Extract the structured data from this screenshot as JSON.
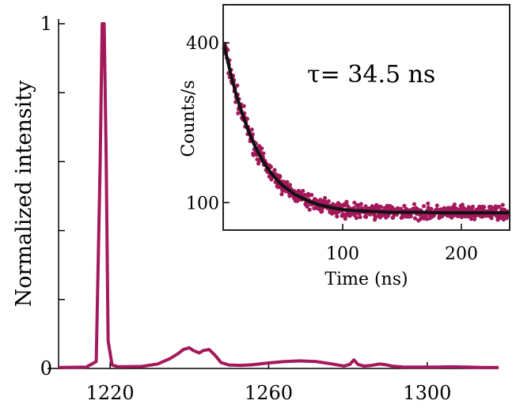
{
  "chart_data": [
    {
      "type": "line",
      "title": "",
      "xlabel": "",
      "ylabel": "Normalized intensity",
      "xlim": [
        1207,
        1318
      ],
      "ylim": [
        0,
        1.0
      ],
      "xticks": [
        1220,
        1260,
        1300
      ],
      "yticks": [
        0,
        1
      ],
      "grid": false,
      "color": "#a3195b",
      "series": [
        {
          "x": [
            1207,
            1214,
            1216.5,
            1217.5,
            1218.0,
            1218.5,
            1219.0,
            1219.5,
            1220.5,
            1222,
            1228,
            1232,
            1235,
            1237,
            1238.5,
            1240,
            1241,
            1242.5,
            1243.5,
            1245,
            1246.5,
            1248,
            1250,
            1253,
            1256,
            1260,
            1264,
            1268,
            1272,
            1276,
            1279,
            1280.5,
            1281.5,
            1282.5,
            1284,
            1286,
            1288,
            1289.5,
            1291,
            1294,
            1298,
            1302,
            1306,
            1310,
            1314,
            1318
          ],
          "y": [
            0.003,
            0.004,
            0.02,
            0.6,
            1.0,
            1.0,
            0.62,
            0.08,
            0.01,
            0.005,
            0.006,
            0.013,
            0.028,
            0.042,
            0.055,
            0.06,
            0.052,
            0.045,
            0.052,
            0.055,
            0.038,
            0.017,
            0.01,
            0.009,
            0.011,
            0.016,
            0.02,
            0.022,
            0.02,
            0.013,
            0.007,
            0.012,
            0.025,
            0.012,
            0.007,
            0.009,
            0.013,
            0.011,
            0.007,
            0.004,
            0.004,
            0.004,
            0.005,
            0.004,
            0.003,
            0.003
          ]
        }
      ],
      "annotations": [
        "1"
      ]
    },
    {
      "type": "scatter",
      "title": "",
      "xlabel": "Time (ns)",
      "ylabel": "Counts/s",
      "xlim": [
        0,
        240
      ],
      "ylim": [
        50,
        470
      ],
      "xticks": [
        100,
        200
      ],
      "yticks": [
        100,
        400
      ],
      "grid": false,
      "scatter_color": "#a3195b",
      "fit_color": "#111111",
      "series": [
        {
          "x": [
            0,
            5,
            10,
            15,
            20,
            25,
            30,
            35,
            40,
            45,
            50,
            60,
            70,
            80,
            90,
            100,
            110,
            120,
            130,
            140,
            150,
            160,
            170,
            180,
            190,
            200,
            210,
            220,
            230,
            240
          ],
          "y": [
            397,
            348,
            305,
            269,
            238,
            211,
            189,
            170,
            155,
            142,
            131,
            115,
            104,
            96,
            91,
            87,
            85,
            84,
            83,
            82,
            82,
            82,
            82,
            81,
            81,
            81,
            81,
            81,
            81,
            81
          ]
        },
        {
          "x": [
            0,
            5,
            10,
            15,
            20,
            25,
            30,
            35,
            40,
            45,
            50,
            60,
            70,
            80,
            90,
            100,
            110,
            120,
            130,
            140,
            150,
            160,
            170,
            180,
            190,
            200,
            210,
            220,
            230,
            240
          ],
          "y": [
            397,
            348,
            305,
            269,
            238,
            211,
            189,
            170,
            155,
            142,
            131,
            115,
            104,
            96,
            91,
            87,
            85,
            84,
            83,
            82,
            82,
            82,
            82,
            81,
            81,
            81,
            81,
            81,
            81,
            81
          ]
        }
      ],
      "annotation": "τ= 34.5 ns"
    }
  ]
}
